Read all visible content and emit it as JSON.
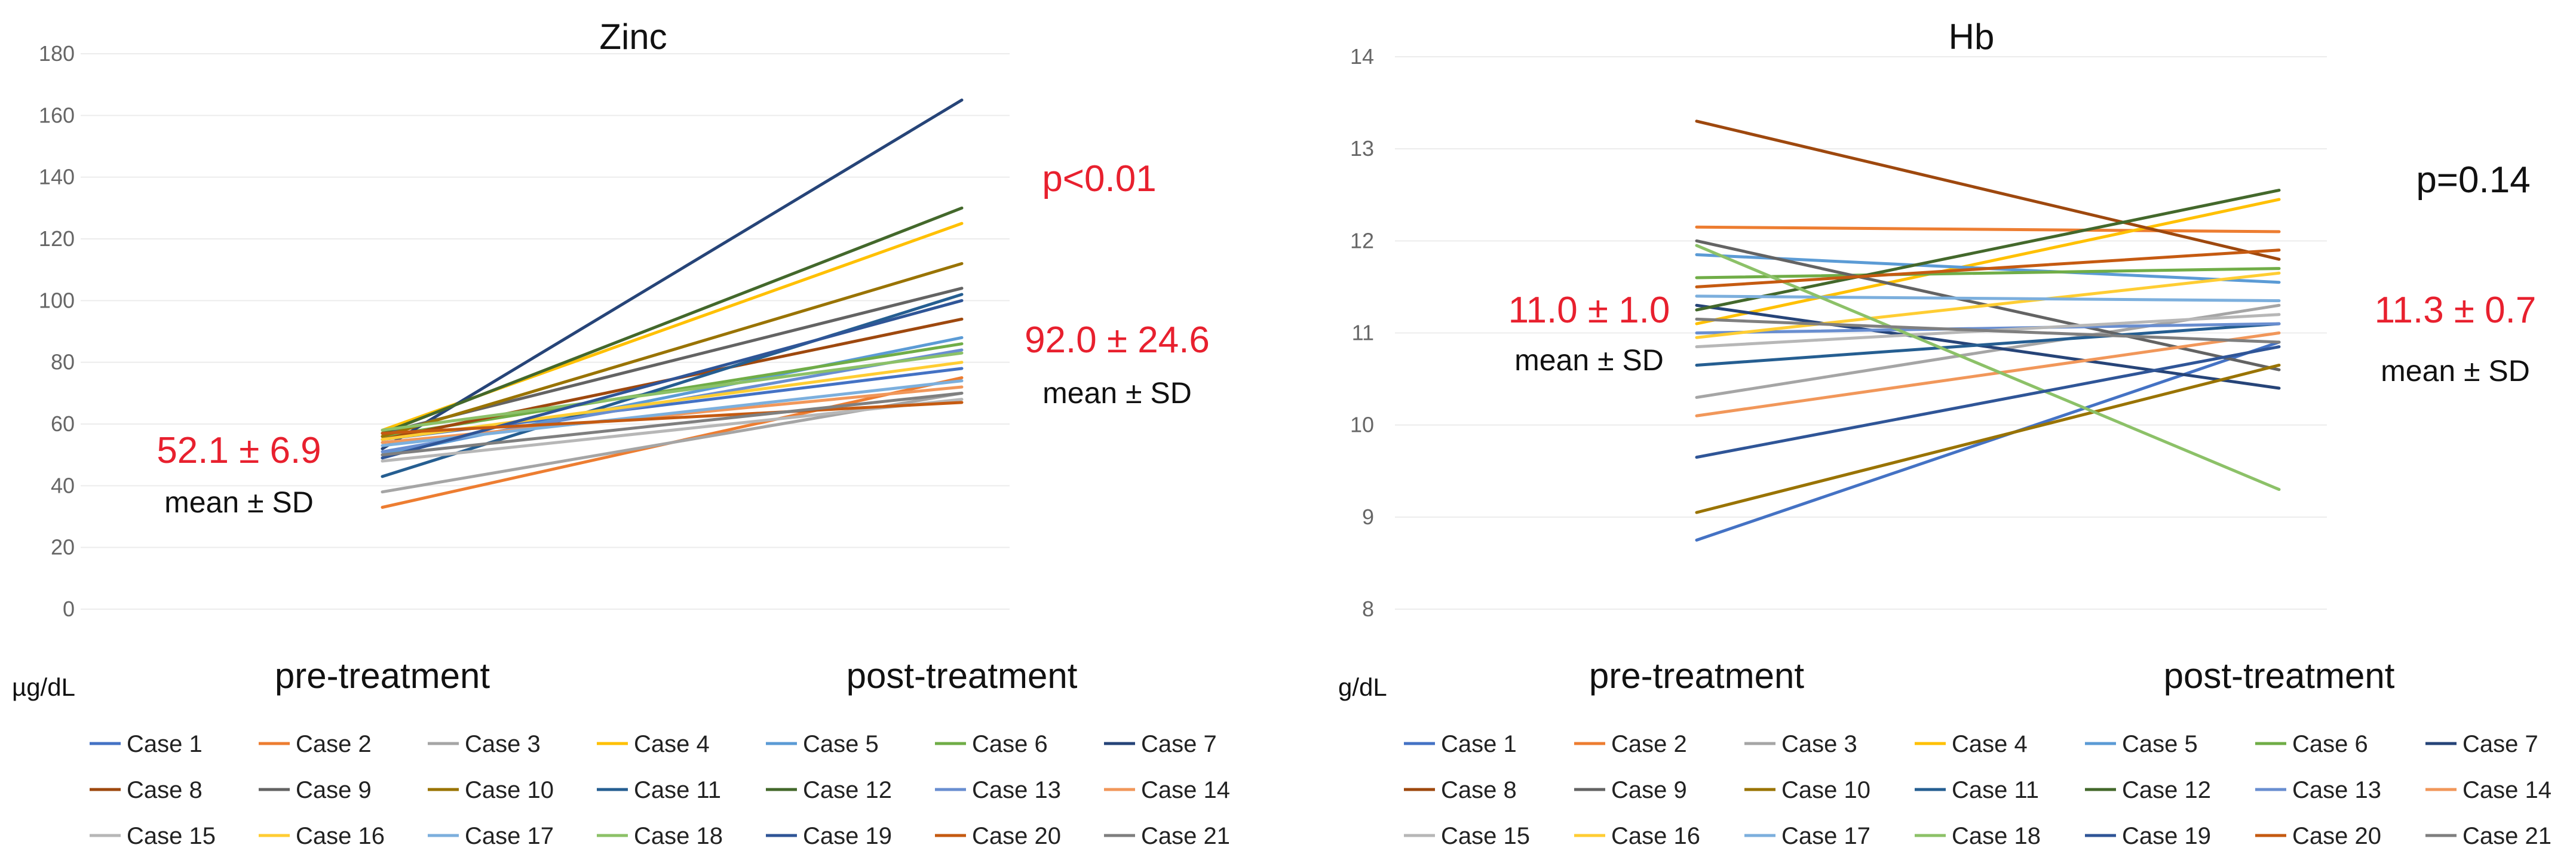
{
  "chart_data": [
    {
      "type": "line",
      "title": "Zinc",
      "ylabel": "µg/dL",
      "categories": [
        "pre-treatment",
        "post-treatment"
      ],
      "ylim": [
        0,
        180
      ],
      "yticks": [
        0,
        20,
        40,
        60,
        80,
        100,
        120,
        140,
        160,
        180
      ],
      "p_value": "p<0.01",
      "p_color": "#e8202e",
      "pre_summary": {
        "value": "52.1 ± 6.9",
        "label": "mean ± SD"
      },
      "post_summary": {
        "value": "92.0 ± 24.6",
        "label": "mean ± SD"
      },
      "series": [
        {
          "name": "Case 1",
          "color": "#4472c4",
          "values": [
            55,
            78
          ]
        },
        {
          "name": "Case 2",
          "color": "#ed7d31",
          "values": [
            33,
            75
          ]
        },
        {
          "name": "Case 3",
          "color": "#a5a5a5",
          "values": [
            38,
            70
          ]
        },
        {
          "name": "Case 4",
          "color": "#ffc000",
          "values": [
            58,
            125
          ]
        },
        {
          "name": "Case 5",
          "color": "#5b9bd5",
          "values": [
            50,
            88
          ]
        },
        {
          "name": "Case 6",
          "color": "#70ad47",
          "values": [
            56,
            86
          ]
        },
        {
          "name": "Case 7",
          "color": "#264478",
          "values": [
            52,
            165
          ]
        },
        {
          "name": "Case 8",
          "color": "#9e480e",
          "values": [
            55,
            94
          ]
        },
        {
          "name": "Case 9",
          "color": "#636363",
          "values": [
            57,
            104
          ]
        },
        {
          "name": "Case 10",
          "color": "#997300",
          "values": [
            56,
            112
          ]
        },
        {
          "name": "Case 11",
          "color": "#255e91",
          "values": [
            43,
            102
          ]
        },
        {
          "name": "Case 12",
          "color": "#43682b",
          "values": [
            57,
            130
          ]
        },
        {
          "name": "Case 13",
          "color": "#698ed0",
          "values": [
            51,
            84
          ]
        },
        {
          "name": "Case 14",
          "color": "#f1975a",
          "values": [
            54,
            72
          ]
        },
        {
          "name": "Case 15",
          "color": "#b7b7b7",
          "values": [
            48,
            68
          ]
        },
        {
          "name": "Case 16",
          "color": "#ffcd33",
          "values": [
            55,
            80
          ]
        },
        {
          "name": "Case 17",
          "color": "#7cafdd",
          "values": [
            53,
            74
          ]
        },
        {
          "name": "Case 18",
          "color": "#8cc168",
          "values": [
            58,
            83
          ]
        },
        {
          "name": "Case 19",
          "color": "#2f5597",
          "values": [
            49,
            100
          ]
        },
        {
          "name": "Case 20",
          "color": "#c55a11",
          "values": [
            57,
            67
          ]
        },
        {
          "name": "Case 21",
          "color": "#7f7f7f",
          "values": [
            50,
            70
          ]
        }
      ]
    },
    {
      "type": "line",
      "title": "Hb",
      "ylabel": "g/dL",
      "categories": [
        "pre-treatment",
        "post-treatment"
      ],
      "ylim": [
        8,
        14
      ],
      "yticks": [
        8,
        9,
        10,
        11,
        12,
        13,
        14
      ],
      "p_value": "p=0.14",
      "p_color": "#111111",
      "pre_summary": {
        "value": "11.0 ± 1.0",
        "label": "mean ± SD"
      },
      "post_summary": {
        "value": "11.3 ± 0.7",
        "label": "mean ± SD"
      },
      "series": [
        {
          "name": "Case 1",
          "color": "#4472c4",
          "values": [
            8.75,
            10.9
          ]
        },
        {
          "name": "Case 2",
          "color": "#ed7d31",
          "values": [
            12.15,
            12.1
          ]
        },
        {
          "name": "Case 3",
          "color": "#a5a5a5",
          "values": [
            10.3,
            11.3
          ]
        },
        {
          "name": "Case 4",
          "color": "#ffc000",
          "values": [
            11.1,
            12.45
          ]
        },
        {
          "name": "Case 5",
          "color": "#5b9bd5",
          "values": [
            11.85,
            11.55
          ]
        },
        {
          "name": "Case 6",
          "color": "#70ad47",
          "values": [
            11.6,
            11.7
          ]
        },
        {
          "name": "Case 7",
          "color": "#264478",
          "values": [
            11.3,
            10.4
          ]
        },
        {
          "name": "Case 8",
          "color": "#9e480e",
          "values": [
            13.3,
            11.8
          ]
        },
        {
          "name": "Case 9",
          "color": "#636363",
          "values": [
            12.0,
            10.6
          ]
        },
        {
          "name": "Case 10",
          "color": "#997300",
          "values": [
            9.05,
            10.65
          ]
        },
        {
          "name": "Case 11",
          "color": "#255e91",
          "values": [
            10.65,
            11.1
          ]
        },
        {
          "name": "Case 12",
          "color": "#43682b",
          "values": [
            11.25,
            12.55
          ]
        },
        {
          "name": "Case 13",
          "color": "#698ed0",
          "values": [
            11.0,
            11.1
          ]
        },
        {
          "name": "Case 14",
          "color": "#f1975a",
          "values": [
            10.1,
            11.0
          ]
        },
        {
          "name": "Case 15",
          "color": "#b7b7b7",
          "values": [
            10.85,
            11.2
          ]
        },
        {
          "name": "Case 16",
          "color": "#ffcd33",
          "values": [
            10.95,
            11.65
          ]
        },
        {
          "name": "Case 17",
          "color": "#7cafdd",
          "values": [
            11.4,
            11.35
          ]
        },
        {
          "name": "Case 18",
          "color": "#8cc168",
          "values": [
            11.95,
            9.3
          ]
        },
        {
          "name": "Case 19",
          "color": "#2f5597",
          "values": [
            9.65,
            10.85
          ]
        },
        {
          "name": "Case 20",
          "color": "#c55a11",
          "values": [
            11.5,
            11.9
          ]
        },
        {
          "name": "Case 21",
          "color": "#7f7f7f",
          "values": [
            11.15,
            10.9
          ]
        }
      ]
    }
  ]
}
